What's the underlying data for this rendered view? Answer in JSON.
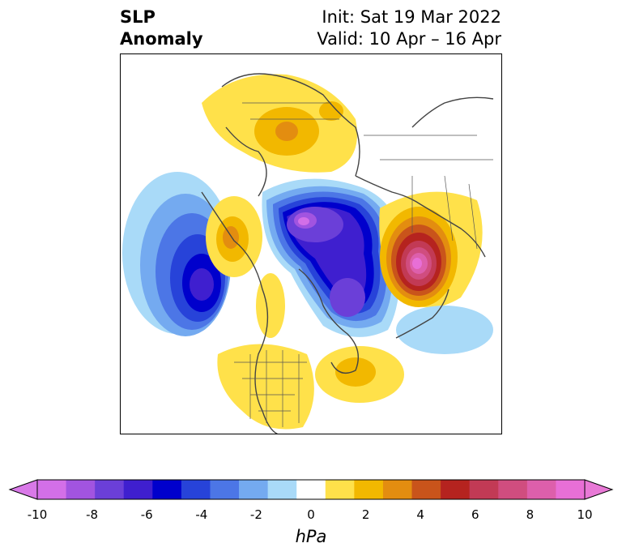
{
  "header": {
    "variable_line1": "SLP",
    "variable_line2": "Anomaly",
    "init": "Init: Sat 19 Mar 2022",
    "valid": "Valid: 10 Apr – 16 Apr"
  },
  "map": {
    "projection": "north-polar stereographic",
    "region": "Northern Hemisphere (North America, Arctic, Eurasia)",
    "features": [
      {
        "name": "north-pacific-low",
        "type": "negative",
        "peak": -7
      },
      {
        "name": "arctic-canada-low",
        "type": "negative",
        "peak": -9
      },
      {
        "name": "central-siberia-low",
        "type": "negative",
        "peak": -9
      },
      {
        "name": "bering-alaska-high",
        "type": "positive",
        "peak": 4
      },
      {
        "name": "europe-scandinavia-high",
        "type": "positive",
        "peak": 10
      },
      {
        "name": "east-asia-high",
        "type": "positive",
        "peak": 3
      },
      {
        "name": "north-atlantic-high",
        "type": "positive",
        "peak": 2
      },
      {
        "name": "continental-us-high",
        "type": "positive",
        "peak": 1
      }
    ]
  },
  "colorbar": {
    "unit": "hPa",
    "min": -10,
    "max": 10,
    "extend": "both",
    "tick_labels": [
      "-10",
      "-8",
      "-6",
      "-4",
      "-2",
      "0",
      "2",
      "4",
      "6",
      "8",
      "10"
    ],
    "colors": [
      "#d36fe8",
      "#a254e0",
      "#6b3fd8",
      "#3f1fcf",
      "#0000cc",
      "#2743d9",
      "#4c76e6",
      "#74aaf0",
      "#a9daf8",
      "#ffffff",
      "#ffe14a",
      "#f2b800",
      "#e38d10",
      "#c9541b",
      "#b5231f",
      "#c23a55",
      "#d04d7f",
      "#dd5fab",
      "#e86fd6"
    ],
    "under_color": "#d979e8",
    "over_color": "#e879d6"
  }
}
